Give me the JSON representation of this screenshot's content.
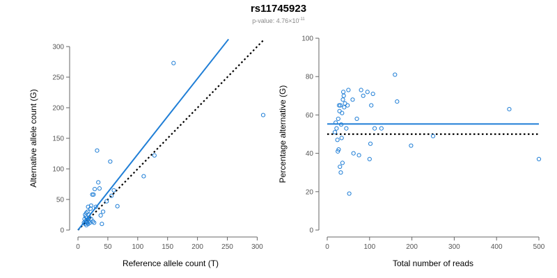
{
  "title": "rs11745923",
  "subtitle_prefix": "p-value: 4.76×10",
  "subtitle_exp": "-11",
  "colors": {
    "points": "#1f7ed6",
    "fit": "#1f7ed6",
    "expected": "#000000"
  },
  "chart_data": [
    {
      "type": "scatter",
      "xlabel": "Reference allele count (T)",
      "ylabel": "Alternative allele count (G)",
      "xlim": [
        0,
        310
      ],
      "ylim": [
        0,
        300
      ],
      "xticks": [
        0,
        50,
        100,
        150,
        200,
        250,
        300
      ],
      "yticks": [
        0,
        50,
        100,
        150,
        200,
        250,
        300
      ],
      "fit_line": {
        "x": [
          0,
          252
        ],
        "y": [
          0,
          312
        ]
      },
      "expected_line": {
        "x": [
          0,
          310
        ],
        "y": [
          0,
          310
        ]
      },
      "points": [
        {
          "x": 10,
          "y": 12
        },
        {
          "x": 11,
          "y": 18
        },
        {
          "x": 12,
          "y": 10
        },
        {
          "x": 12,
          "y": 25
        },
        {
          "x": 13,
          "y": 15
        },
        {
          "x": 13,
          "y": 22
        },
        {
          "x": 14,
          "y": 8
        },
        {
          "x": 14,
          "y": 28
        },
        {
          "x": 15,
          "y": 12
        },
        {
          "x": 15,
          "y": 20
        },
        {
          "x": 16,
          "y": 17
        },
        {
          "x": 16,
          "y": 30
        },
        {
          "x": 17,
          "y": 10
        },
        {
          "x": 17,
          "y": 38
        },
        {
          "x": 18,
          "y": 14
        },
        {
          "x": 18,
          "y": 25
        },
        {
          "x": 19,
          "y": 20
        },
        {
          "x": 20,
          "y": 12
        },
        {
          "x": 21,
          "y": 35
        },
        {
          "x": 22,
          "y": 40
        },
        {
          "x": 22,
          "y": 18
        },
        {
          "x": 24,
          "y": 58
        },
        {
          "x": 25,
          "y": 14
        },
        {
          "x": 26,
          "y": 58
        },
        {
          "x": 27,
          "y": 12
        },
        {
          "x": 28,
          "y": 67
        },
        {
          "x": 30,
          "y": 38
        },
        {
          "x": 32,
          "y": 130
        },
        {
          "x": 34,
          "y": 78
        },
        {
          "x": 36,
          "y": 68
        },
        {
          "x": 38,
          "y": 24
        },
        {
          "x": 40,
          "y": 10
        },
        {
          "x": 42,
          "y": 30
        },
        {
          "x": 48,
          "y": 47
        },
        {
          "x": 54,
          "y": 112
        },
        {
          "x": 56,
          "y": 56
        },
        {
          "x": 60,
          "y": 65
        },
        {
          "x": 66,
          "y": 39
        },
        {
          "x": 110,
          "y": 88
        },
        {
          "x": 128,
          "y": 122
        },
        {
          "x": 160,
          "y": 273
        },
        {
          "x": 310,
          "y": 188
        }
      ]
    },
    {
      "type": "scatter",
      "xlabel": "Total number of reads",
      "ylabel": "Percentage alternative (G)",
      "xlim": [
        0,
        500
      ],
      "ylim": [
        0,
        100
      ],
      "xticks": [
        0,
        100,
        200,
        300,
        400,
        500
      ],
      "yticks": [
        0,
        20,
        40,
        60,
        80,
        100
      ],
      "fit_line": {
        "x": [
          0,
          500
        ],
        "y": [
          55.3,
          55.3
        ]
      },
      "expected_line": {
        "x": [
          0,
          500
        ],
        "y": [
          50,
          50
        ]
      },
      "points": [
        {
          "x": 18,
          "y": 51
        },
        {
          "x": 20,
          "y": 56
        },
        {
          "x": 22,
          "y": 53
        },
        {
          "x": 24,
          "y": 47
        },
        {
          "x": 25,
          "y": 41
        },
        {
          "x": 26,
          "y": 58
        },
        {
          "x": 27,
          "y": 42
        },
        {
          "x": 28,
          "y": 65
        },
        {
          "x": 29,
          "y": 62
        },
        {
          "x": 30,
          "y": 33
        },
        {
          "x": 31,
          "y": 65
        },
        {
          "x": 32,
          "y": 30
        },
        {
          "x": 33,
          "y": 55
        },
        {
          "x": 34,
          "y": 48
        },
        {
          "x": 35,
          "y": 61
        },
        {
          "x": 36,
          "y": 35
        },
        {
          "x": 37,
          "y": 68
        },
        {
          "x": 38,
          "y": 72
        },
        {
          "x": 39,
          "y": 70
        },
        {
          "x": 40,
          "y": 64
        },
        {
          "x": 42,
          "y": 66
        },
        {
          "x": 45,
          "y": 53
        },
        {
          "x": 48,
          "y": 65
        },
        {
          "x": 50,
          "y": 73
        },
        {
          "x": 52,
          "y": 19
        },
        {
          "x": 60,
          "y": 68
        },
        {
          "x": 62,
          "y": 40
        },
        {
          "x": 70,
          "y": 58
        },
        {
          "x": 75,
          "y": 39
        },
        {
          "x": 80,
          "y": 73
        },
        {
          "x": 85,
          "y": 70
        },
        {
          "x": 95,
          "y": 72
        },
        {
          "x": 100,
          "y": 37
        },
        {
          "x": 102,
          "y": 45
        },
        {
          "x": 104,
          "y": 65
        },
        {
          "x": 108,
          "y": 71
        },
        {
          "x": 112,
          "y": 53
        },
        {
          "x": 128,
          "y": 53
        },
        {
          "x": 160,
          "y": 81
        },
        {
          "x": 165,
          "y": 67
        },
        {
          "x": 198,
          "y": 44
        },
        {
          "x": 250,
          "y": 49
        },
        {
          "x": 430,
          "y": 63
        },
        {
          "x": 500,
          "y": 37
        }
      ]
    }
  ]
}
